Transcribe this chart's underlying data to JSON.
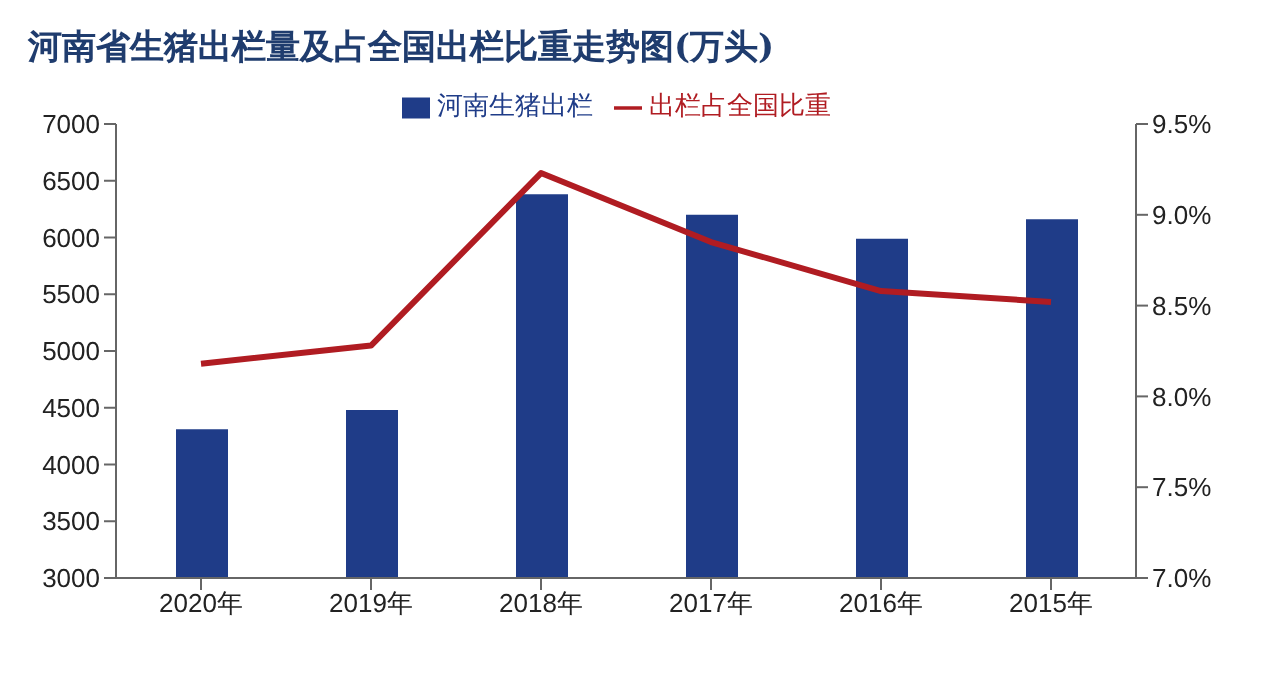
{
  "chart_data": {
    "type": "bar",
    "title": "河南省生猪出栏量及占全国出栏比重走势图(万头)",
    "categories": [
      "2020年",
      "2019年",
      "2018年",
      "2017年",
      "2016年",
      "2015年"
    ],
    "series": [
      {
        "name": "河南生猪出栏",
        "color": "#1f3c88",
        "values": [
          4310,
          4480,
          6380,
          6200,
          5990,
          6160
        ]
      },
      {
        "name": "出栏占全国比重",
        "type": "line",
        "axis": "y2",
        "color": "#b01c22",
        "values": [
          8.18,
          8.28,
          9.23,
          8.85,
          8.58,
          8.52
        ]
      }
    ],
    "ylim": [
      3000,
      7000
    ],
    "yticks": [
      3000,
      3500,
      4000,
      4500,
      5000,
      5500,
      6000,
      6500,
      7000
    ],
    "y2lim": [
      7.0,
      9.5
    ],
    "y2ticks": [
      {
        "value": 7.0,
        "label": "7.0%"
      },
      {
        "value": 7.5,
        "label": "7.5%"
      },
      {
        "value": 8.0,
        "label": "8.0%"
      },
      {
        "value": 8.5,
        "label": "8.5%"
      },
      {
        "value": 9.0,
        "label": "9.0%"
      },
      {
        "value": 9.5,
        "label": "9.5%"
      }
    ],
    "legend": "top",
    "grid": false,
    "marker": "none"
  }
}
